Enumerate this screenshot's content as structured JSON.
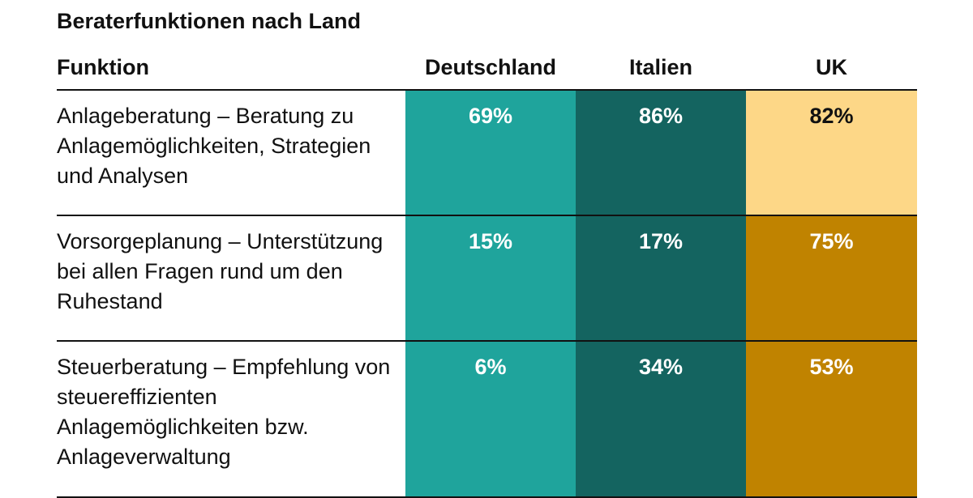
{
  "title": "Beraterfunktionen nach Land",
  "chart_data": {
    "type": "table",
    "title": "Beraterfunktionen nach Land",
    "row_header": "Funktion",
    "columns": [
      "Deutschland",
      "Italien",
      "UK"
    ],
    "rows": [
      {
        "label": "Anlageberatung – Beratung zu Anlagemöglichkeiten, Strategien und Analysen",
        "values": [
          69,
          86,
          82
        ],
        "display": [
          "69%",
          "86%",
          "82%"
        ]
      },
      {
        "label": "Vorsorgeplanung – Unterstützung bei allen Fragen rund um den Ruhestand",
        "values": [
          15,
          17,
          75
        ],
        "display": [
          "15%",
          "17%",
          "75%"
        ]
      },
      {
        "label": "Steuerberatung – Empfehlung von steuereffizienten Anlagemöglichkeiten bzw. Anlageverwaltung",
        "values": [
          6,
          34,
          53
        ],
        "display": [
          "6%",
          "34%",
          "53%"
        ]
      }
    ],
    "unit": "%",
    "colors": {
      "Deutschland": "#1fa49c",
      "Italien": "#146460",
      "UK_high": "#fdd787",
      "UK_low": "#c08300",
      "text_dark": "#111111",
      "text_light": "#ffffff"
    }
  }
}
